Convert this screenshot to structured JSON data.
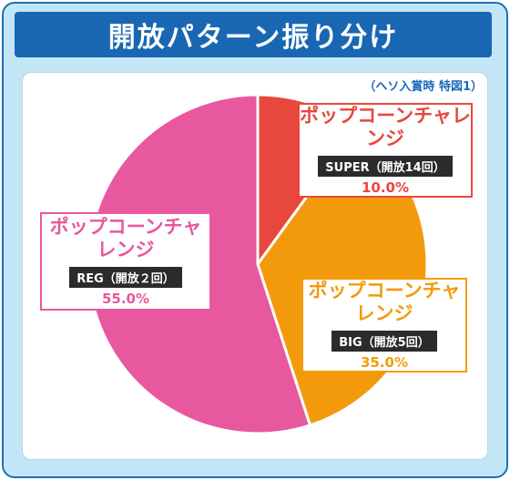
{
  "title": "開放パターン振り分け",
  "note": "（ヘソ入賞時 特図1）",
  "colors": {
    "frame_bg": "#c3e6f7",
    "title_bg": "#1967b3",
    "super": "#e8473e",
    "big": "#f39a0c",
    "reg": "#e8589e"
  },
  "chart_data": {
    "type": "pie",
    "title": "開放パターン振り分け",
    "slices": [
      {
        "label": "ポップコーンチャレンジ",
        "tag": "SUPER（開放14回）",
        "value": 10.0,
        "value_label": "10.0%",
        "color": "#e8473e"
      },
      {
        "label": "ポップコーンチャレンジ",
        "tag": "BIG（開放5回）",
        "value": 35.0,
        "value_label": "35.0%",
        "color": "#f39a0c"
      },
      {
        "label": "ポップコーンチャレンジ",
        "tag": "REG（開放２回）",
        "value": 55.0,
        "value_label": "55.0%",
        "color": "#e8589e"
      }
    ],
    "start_angle": "top",
    "direction": "clockwise"
  }
}
